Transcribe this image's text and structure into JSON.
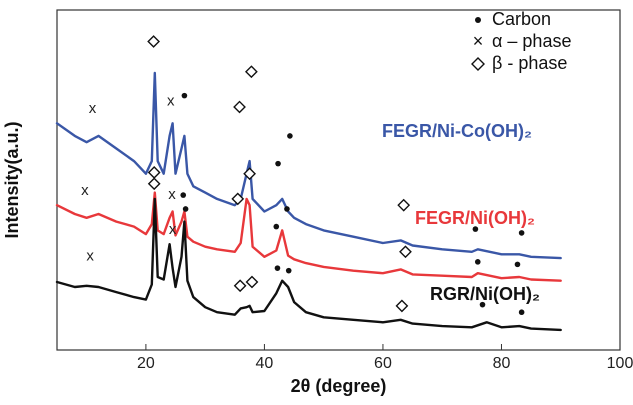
{
  "chart_data": {
    "type": "line",
    "xlabel": "2θ (degree)",
    "ylabel": "Intensity(a.u.)",
    "xlim": [
      5,
      100
    ],
    "xticks": [
      "20",
      "40",
      "60",
      "80",
      "100"
    ],
    "grid": false,
    "legend": {
      "position": "top-right",
      "items": [
        {
          "symbol": "dot",
          "label": "Carbon"
        },
        {
          "symbol": "x",
          "label": "α – phase"
        },
        {
          "symbol": "diamond",
          "label": "β - phase"
        }
      ]
    },
    "series": [
      {
        "name": "FEGR/Ni-Co(OH)₂",
        "color": "#3a57a7",
        "x": [
          5,
          8,
          10,
          12,
          15,
          18,
          20,
          21,
          21.5,
          22,
          23,
          24,
          24.5,
          25,
          26,
          26.5,
          27,
          28,
          30,
          32,
          35,
          36,
          37,
          37.5,
          38,
          40,
          42,
          43,
          44,
          45,
          47,
          50,
          55,
          60,
          63,
          65,
          70,
          75,
          76,
          80,
          83,
          85,
          90
        ],
        "y": [
          18,
          17,
          16.5,
          17,
          16,
          15,
          14,
          15,
          22,
          15,
          14,
          17,
          18,
          14,
          16,
          17,
          14,
          13,
          12.5,
          12,
          11.5,
          12,
          14,
          15,
          12,
          11,
          11.5,
          12,
          11,
          10.5,
          10,
          9.5,
          9,
          8.5,
          8.7,
          8.3,
          8,
          7.8,
          8,
          7.6,
          7.6,
          7.4,
          7.3
        ]
      },
      {
        "name": "FEGR/Ni(OH)₂",
        "color": "#e8383b",
        "x": [
          5,
          8,
          10,
          12,
          15,
          18,
          20,
          21,
          21.5,
          22,
          23,
          24,
          24.5,
          25,
          26,
          26.5,
          27,
          28,
          30,
          32,
          35,
          36,
          37,
          37.5,
          38,
          40,
          42,
          43,
          44,
          45,
          47,
          50,
          55,
          60,
          63,
          65,
          70,
          75,
          76,
          80,
          83,
          85,
          90
        ],
        "y": [
          11.5,
          10.8,
          10.5,
          10.8,
          10.2,
          9.8,
          9.2,
          10,
          12.5,
          9.5,
          9.2,
          10.5,
          11,
          9.1,
          10.2,
          11,
          9,
          8.6,
          8.2,
          8,
          7.8,
          8.5,
          12,
          11.5,
          8.2,
          7.4,
          7.9,
          9.5,
          7.5,
          7.2,
          6.9,
          6.6,
          6.3,
          6.1,
          6.4,
          6,
          5.9,
          5.8,
          6.1,
          5.7,
          5.8,
          5.6,
          5.5
        ]
      },
      {
        "name": "RGR/Ni(OH)₂",
        "color": "#111111",
        "x": [
          5,
          8,
          10,
          12,
          15,
          18,
          20,
          21,
          21.5,
          22,
          23,
          24,
          24.5,
          25,
          26,
          26.5,
          27,
          28,
          30,
          32,
          35,
          36,
          37,
          37.5,
          38,
          40,
          42,
          43,
          44,
          45,
          47,
          50,
          55,
          60,
          63,
          65,
          70,
          75,
          77.5,
          80,
          83,
          85,
          90
        ],
        "y": [
          5.4,
          5.0,
          5.1,
          5.0,
          4.6,
          4.2,
          4.0,
          5.2,
          12,
          5.8,
          5.6,
          8.4,
          6.5,
          5.0,
          7.4,
          10.2,
          5.5,
          4.2,
          3.4,
          3.0,
          2.8,
          3.3,
          3.4,
          3.5,
          3.0,
          3.1,
          4.5,
          5.5,
          5.0,
          3.8,
          3.0,
          2.6,
          2.4,
          2.2,
          2.4,
          2.1,
          1.9,
          1.8,
          2.2,
          1.8,
          1.9,
          1.7,
          1.6
        ]
      }
    ],
    "annotations": [
      {
        "series": "FEGR/Ni-Co(OH)₂",
        "label": "FEGR/Ni-Co(OH)₂"
      },
      {
        "series": "FEGR/Ni(OH)₂",
        "label": "FEGR/Ni(OH)₂"
      },
      {
        "series": "RGR/Ni(OH)₂",
        "label": "RGR/Ni(OH)₂"
      }
    ],
    "peak_markers": [
      {
        "series": "FEGR/Ni-Co(OH)₂",
        "x": 11.0,
        "y": 19.2,
        "symbol": "x"
      },
      {
        "series": "FEGR/Ni-Co(OH)₂",
        "x": 21.3,
        "y": 24.5,
        "symbol": "diamond"
      },
      {
        "series": "FEGR/Ni-Co(OH)₂",
        "x": 24.2,
        "y": 19.8,
        "symbol": "x"
      },
      {
        "series": "FEGR/Ni-Co(OH)₂",
        "x": 26.5,
        "y": 20.2,
        "symbol": "dot"
      },
      {
        "series": "FEGR/Ni-Co(OH)₂",
        "x": 35.8,
        "y": 19.3,
        "symbol": "diamond"
      },
      {
        "series": "FEGR/Ni-Co(OH)₂",
        "x": 37.8,
        "y": 22.1,
        "symbol": "diamond"
      },
      {
        "series": "FEGR/Ni-Co(OH)₂",
        "x": 42.3,
        "y": 14.8,
        "symbol": "dot"
      },
      {
        "series": "FEGR/Ni-Co(OH)₂",
        "x": 44.3,
        "y": 17.0,
        "symbol": "dot"
      },
      {
        "series": "FEGR/Ni-Co(OH)₂",
        "x": 63.5,
        "y": 11.5,
        "symbol": "diamond"
      },
      {
        "series": "FEGR/Ni-Co(OH)₂",
        "x": 75.6,
        "y": 9.6,
        "symbol": "dot"
      },
      {
        "series": "FEGR/Ni-Co(OH)₂",
        "x": 83.4,
        "y": 9.3,
        "symbol": "dot"
      },
      {
        "series": "FEGR/Ni(OH)₂",
        "x": 9.7,
        "y": 12.7,
        "symbol": "x"
      },
      {
        "series": "FEGR/Ni(OH)₂",
        "x": 21.4,
        "y": 14.1,
        "symbol": "diamond"
      },
      {
        "series": "FEGR/Ni(OH)₂",
        "x": 24.4,
        "y": 12.4,
        "symbol": "x"
      },
      {
        "series": "FEGR/Ni(OH)₂",
        "x": 26.3,
        "y": 12.3,
        "symbol": "dot"
      },
      {
        "series": "FEGR/Ni(OH)₂",
        "x": 35.5,
        "y": 12.0,
        "symbol": "diamond"
      },
      {
        "series": "FEGR/Ni(OH)₂",
        "x": 37.5,
        "y": 14.0,
        "symbol": "diamond"
      },
      {
        "series": "FEGR/Ni(OH)₂",
        "x": 42.0,
        "y": 9.8,
        "symbol": "dot"
      },
      {
        "series": "FEGR/Ni(OH)₂",
        "x": 43.8,
        "y": 11.2,
        "symbol": "dot"
      },
      {
        "series": "FEGR/Ni(OH)₂",
        "x": 63.8,
        "y": 7.8,
        "symbol": "diamond"
      },
      {
        "series": "FEGR/Ni(OH)₂",
        "x": 76.0,
        "y": 7.0,
        "symbol": "dot"
      },
      {
        "series": "FEGR/Ni(OH)₂",
        "x": 82.7,
        "y": 6.8,
        "symbol": "dot"
      },
      {
        "series": "RGR/Ni(OH)₂",
        "x": 10.6,
        "y": 7.5,
        "symbol": "x"
      },
      {
        "series": "RGR/Ni(OH)₂",
        "x": 21.4,
        "y": 13.2,
        "symbol": "diamond"
      },
      {
        "series": "RGR/Ni(OH)₂",
        "x": 24.5,
        "y": 9.6,
        "symbol": "x"
      },
      {
        "series": "RGR/Ni(OH)₂",
        "x": 26.7,
        "y": 11.2,
        "symbol": "dot"
      },
      {
        "series": "RGR/Ni(OH)₂",
        "x": 35.9,
        "y": 5.1,
        "symbol": "diamond"
      },
      {
        "series": "RGR/Ni(OH)₂",
        "x": 37.9,
        "y": 5.4,
        "symbol": "diamond"
      },
      {
        "series": "RGR/Ni(OH)₂",
        "x": 42.2,
        "y": 6.5,
        "symbol": "dot"
      },
      {
        "series": "RGR/Ni(OH)₂",
        "x": 44.1,
        "y": 6.3,
        "symbol": "dot"
      },
      {
        "series": "RGR/Ni(OH)₂",
        "x": 63.2,
        "y": 3.5,
        "symbol": "diamond"
      },
      {
        "series": "RGR/Ni(OH)₂",
        "x": 76.8,
        "y": 3.6,
        "symbol": "dot"
      },
      {
        "series": "RGR/Ni(OH)₂",
        "x": 83.4,
        "y": 3.0,
        "symbol": "dot"
      }
    ]
  }
}
